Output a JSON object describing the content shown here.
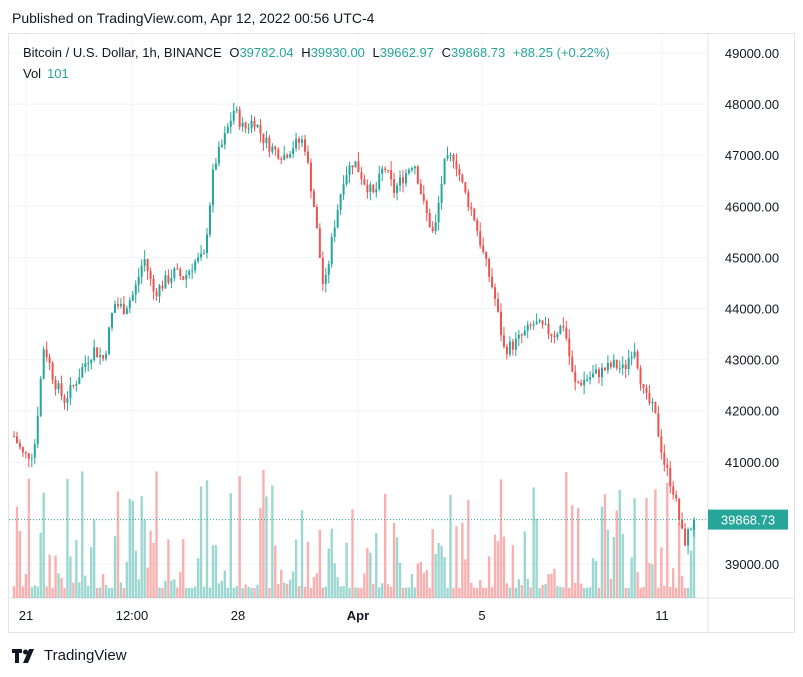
{
  "published": "Published on TradingView.com, Apr 12, 2022 00:56 UTC-4",
  "legend": {
    "symbol": "Bitcoin / U.S. Dollar, 1h, BINANCE",
    "open_label": "O",
    "open": "39782.04",
    "high_label": "H",
    "high": "39930.00",
    "low_label": "L",
    "low": "39662.97",
    "close_label": "C",
    "close": "39868.73",
    "change": "+88.25 (+0.22%)",
    "vol_label": "Vol",
    "vol": "101"
  },
  "price_tag": "39868.73",
  "footer": {
    "brand": "TradingView",
    "logo_icon": "tradingview-logo-icon"
  },
  "colors": {
    "up": "#26a69a",
    "down": "#ef5350",
    "grid": "#f0f3fa",
    "last_price": "#26a69a"
  },
  "chart_data": {
    "type": "candlestick",
    "symbol": "BTCUSD",
    "interval": "1h",
    "y_ticks": [
      "49000.00",
      "48000.00",
      "47000.00",
      "46000.00",
      "45000.00",
      "44000.00",
      "43000.00",
      "42000.00",
      "41000.00",
      "39000.00"
    ],
    "y_tick_values": [
      49000,
      48000,
      47000,
      46000,
      45000,
      44000,
      43000,
      42000,
      41000,
      39000
    ],
    "ylim": [
      38300,
      49500
    ],
    "x_ticks": [
      "21",
      "12:00",
      "28",
      "Apr",
      "5",
      "11"
    ],
    "x_tick_bold": [
      false,
      false,
      false,
      true,
      false,
      false
    ],
    "last_price": 39868.73,
    "close_path": [
      [
        0,
        41500
      ],
      [
        1,
        41100
      ],
      [
        2,
        41200
      ],
      [
        3,
        43300
      ],
      [
        4,
        42600
      ],
      [
        5,
        42200
      ],
      [
        6,
        42500
      ],
      [
        7,
        42900
      ],
      [
        8,
        43200
      ],
      [
        9,
        43000
      ],
      [
        10,
        44100
      ],
      [
        11,
        44000
      ],
      [
        12,
        44300
      ],
      [
        13,
        45000
      ],
      [
        14,
        44300
      ],
      [
        15,
        44500
      ],
      [
        16,
        44700
      ],
      [
        17,
        44600
      ],
      [
        18,
        44900
      ],
      [
        19,
        45000
      ],
      [
        20,
        46800
      ],
      [
        21,
        47300
      ],
      [
        22,
        47900
      ],
      [
        23,
        47500
      ],
      [
        24,
        47700
      ],
      [
        25,
        47300
      ],
      [
        26,
        47100
      ],
      [
        27,
        47000
      ],
      [
        28,
        47200
      ],
      [
        29,
        47300
      ],
      [
        30,
        46000
      ],
      [
        31,
        44300
      ],
      [
        32,
        45600
      ],
      [
        33,
        46600
      ],
      [
        34,
        46900
      ],
      [
        35,
        46500
      ],
      [
        36,
        46200
      ],
      [
        37,
        46800
      ],
      [
        38,
        46300
      ],
      [
        39,
        46600
      ],
      [
        40,
        46900
      ],
      [
        41,
        46000
      ],
      [
        42,
        45400
      ],
      [
        43,
        46800
      ],
      [
        44,
        47000
      ],
      [
        45,
        46300
      ],
      [
        46,
        45800
      ],
      [
        47,
        45000
      ],
      [
        48,
        44300
      ],
      [
        49,
        43200
      ],
      [
        50,
        43300
      ],
      [
        51,
        43500
      ],
      [
        52,
        43700
      ],
      [
        53,
        43600
      ],
      [
        54,
        43500
      ],
      [
        55,
        43700
      ],
      [
        56,
        42500
      ],
      [
        57,
        42600
      ],
      [
        58,
        42700
      ],
      [
        59,
        42800
      ],
      [
        60,
        42900
      ],
      [
        61,
        42800
      ],
      [
        62,
        43300
      ],
      [
        63,
        42300
      ],
      [
        64,
        42000
      ],
      [
        65,
        41000
      ],
      [
        66,
        40400
      ],
      [
        67,
        39400
      ],
      [
        68,
        39870
      ]
    ],
    "volume_scale_max": 140
  }
}
